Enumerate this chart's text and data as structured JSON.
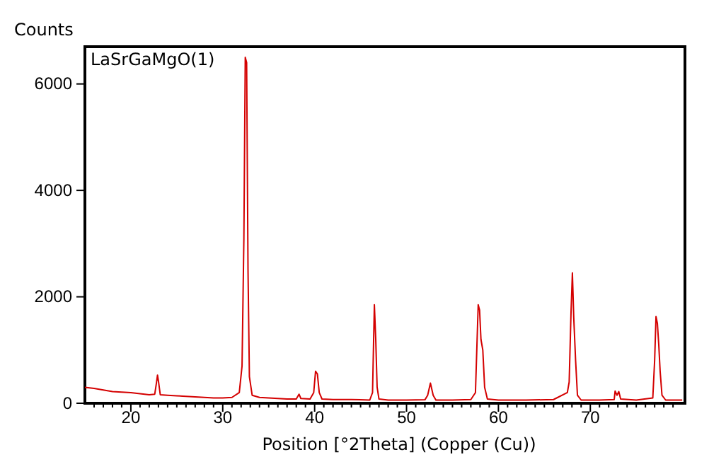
{
  "chart_data": {
    "type": "line",
    "ylabel": "Counts",
    "xlabel": "Position [°2Theta] (Copper (Cu))",
    "annotations": [
      "LaSrGaMgO(1)"
    ],
    "xlim": [
      15,
      80.3
    ],
    "ylim": [
      0,
      6700
    ],
    "xticks": [
      {
        "value": 16,
        "label": null
      },
      {
        "value": 17,
        "label": null
      },
      {
        "value": 18,
        "label": null
      },
      {
        "value": 19,
        "label": null
      },
      20,
      {
        "value": 21,
        "label": null
      },
      {
        "value": 22,
        "label": null
      },
      {
        "value": 23,
        "label": null
      },
      {
        "value": 24,
        "label": null
      },
      {
        "value": 25,
        "label": null
      },
      {
        "value": 26,
        "label": null
      },
      {
        "value": 27,
        "label": null
      },
      {
        "value": 28,
        "label": null
      },
      {
        "value": 29,
        "label": null
      },
      30,
      {
        "value": 31,
        "label": null
      },
      {
        "value": 32,
        "label": null
      },
      {
        "value": 33,
        "label": null
      },
      {
        "value": 34,
        "label": null
      },
      {
        "value": 35,
        "label": null
      },
      {
        "value": 36,
        "label": null
      },
      {
        "value": 37,
        "label": null
      },
      {
        "value": 38,
        "label": null
      },
      {
        "value": 39,
        "label": null
      },
      40,
      {
        "value": 41,
        "label": null
      },
      {
        "value": 42,
        "label": null
      },
      {
        "value": 43,
        "label": null
      },
      {
        "value": 44,
        "label": null
      },
      {
        "value": 45,
        "label": null
      },
      {
        "value": 46,
        "label": null
      },
      {
        "value": 47,
        "label": null
      },
      {
        "value": 48,
        "label": null
      },
      {
        "value": 49,
        "label": null
      },
      50,
      {
        "value": 51,
        "label": null
      },
      {
        "value": 52,
        "label": null
      },
      {
        "value": 53,
        "label": null
      },
      {
        "value": 54,
        "label": null
      },
      {
        "value": 55,
        "label": null
      },
      {
        "value": 56,
        "label": null
      },
      {
        "value": 57,
        "label": null
      },
      {
        "value": 58,
        "label": null
      },
      {
        "value": 59,
        "label": null
      },
      60,
      {
        "value": 61,
        "label": null
      },
      {
        "value": 62,
        "label": null
      },
      {
        "value": 63,
        "label": null
      },
      {
        "value": 64,
        "label": null
      },
      {
        "value": 65,
        "label": null
      },
      {
        "value": 66,
        "label": null
      },
      {
        "value": 67,
        "label": null
      },
      {
        "value": 68,
        "label": null
      },
      {
        "value": 69,
        "label": null
      },
      70,
      {
        "value": 71,
        "label": null
      },
      {
        "value": 72,
        "label": null
      },
      {
        "value": 73,
        "label": null
      },
      {
        "value": 74,
        "label": null
      },
      {
        "value": 75,
        "label": null
      },
      {
        "value": 76,
        "label": null
      },
      {
        "value": 77,
        "label": null
      },
      {
        "value": 78,
        "label": null
      },
      {
        "value": 79,
        "label": null
      }
    ],
    "yticks": [
      0,
      2000,
      4000,
      6000
    ],
    "grid": false,
    "marker": "none",
    "line_style": "solid",
    "series": [
      {
        "color": "#d40000",
        "x": [
          15,
          15.5,
          16,
          17,
          18,
          19,
          20,
          21,
          22,
          22.6,
          22.8,
          22.9,
          23.0,
          23.2,
          24,
          25,
          26,
          27,
          28,
          29,
          30,
          31,
          31.8,
          32.1,
          32.3,
          32.45,
          32.6,
          32.75,
          32.9,
          33.2,
          34,
          35,
          36,
          37,
          38,
          38.3,
          38.5,
          39.5,
          39.9,
          40.1,
          40.3,
          40.5,
          40.8,
          42,
          44,
          46,
          46.3,
          46.5,
          46.65,
          46.8,
          47,
          48,
          50,
          52,
          52.3,
          52.6,
          52.9,
          53.2,
          55,
          57,
          57.5,
          57.8,
          57.95,
          58.1,
          58.3,
          58.5,
          58.8,
          60,
          63,
          66,
          67.5,
          67.7,
          67.9,
          68.05,
          68.2,
          68.4,
          68.6,
          69,
          71,
          72.6,
          72.7,
          72.9,
          73.1,
          73.3,
          75,
          76.8,
          77.0,
          77.15,
          77.3,
          77.45,
          77.6,
          77.8,
          78.2,
          80
        ],
        "values": [
          300,
          290,
          280,
          250,
          220,
          210,
          200,
          180,
          160,
          170,
          400,
          530,
          420,
          160,
          150,
          140,
          130,
          120,
          110,
          100,
          100,
          110,
          200,
          700,
          3100,
          6500,
          6400,
          2500,
          500,
          150,
          110,
          100,
          90,
          80,
          80,
          170,
          90,
          80,
          200,
          600,
          550,
          200,
          80,
          70,
          70,
          60,
          200,
          1850,
          1200,
          300,
          80,
          60,
          60,
          65,
          150,
          380,
          150,
          60,
          60,
          70,
          200,
          1850,
          1750,
          1200,
          1000,
          300,
          80,
          60,
          60,
          70,
          200,
          400,
          1700,
          2450,
          1600,
          800,
          150,
          60,
          60,
          70,
          230,
          150,
          220,
          80,
          60,
          100,
          800,
          1630,
          1500,
          1100,
          600,
          150,
          60,
          60
        ]
      }
    ]
  }
}
